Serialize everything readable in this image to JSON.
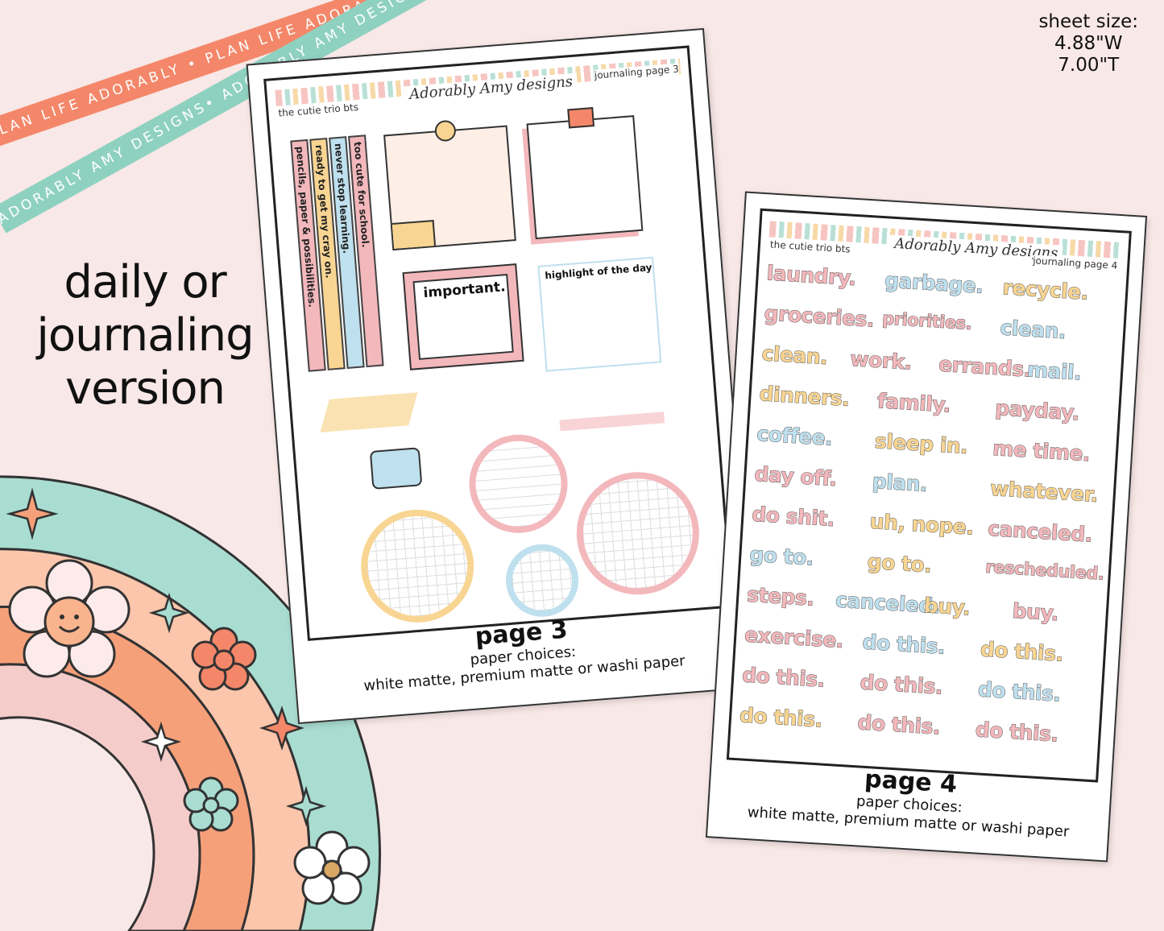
{
  "ribbons": {
    "top": "PLAN LIFE ADORABLY • PLAN LIFE ADORABLY • PLAN LIFE ADORABLY •",
    "bottom": "ADORABLY AMY DESIGNS• ADORABLY AMY DESIGNS• ADORABLY AMY DESIGNS•"
  },
  "sheet_size": {
    "label": "sheet size:",
    "width": "4.88\"W",
    "height": "7.00\"T"
  },
  "headline": [
    "daily or",
    "journaling",
    "version"
  ],
  "page3": {
    "header_left": "the cutie trio bts",
    "logo": "Adorably Amy designs",
    "header_right": "journaling page 3",
    "tabs": [
      "too cute for school.",
      "never stop learning.",
      "ready to get my cray on.",
      "pencils, paper & possibilities."
    ],
    "labels": {
      "important": "important.",
      "highlight": "highlight of the day"
    },
    "caption_title": "page 3",
    "caption_line1": "paper choices:",
    "caption_line2": "white matte, premium matte or washi paper"
  },
  "page4": {
    "header_left": "the cutie trio bts",
    "logo": "Adorably Amy designs",
    "header_right": "journaling page 4",
    "rows": [
      [
        {
          "t": "laundry.",
          "c": "pink"
        },
        {
          "t": "garbage.",
          "c": "blue"
        },
        {
          "t": "recycle.",
          "c": "yellow"
        }
      ],
      [
        {
          "t": "groceries.",
          "c": "pink"
        },
        {
          "t": "priorities.",
          "c": "pink"
        },
        {
          "t": "clean.",
          "c": "blue"
        }
      ],
      [
        {
          "t": "clean.",
          "c": "yellow"
        },
        {
          "t": "work.",
          "c": "pink"
        },
        {
          "t": "errands.",
          "c": "pink"
        },
        {
          "t": "mail.",
          "c": "blue"
        }
      ],
      [
        {
          "t": "dinners.",
          "c": "yellow"
        },
        {
          "t": "family.",
          "c": "pink"
        },
        {
          "t": "payday.",
          "c": "pink"
        }
      ],
      [
        {
          "t": "coffee.",
          "c": "blue"
        },
        {
          "t": "sleep in.",
          "c": "yellow"
        },
        {
          "t": "me time.",
          "c": "pink"
        }
      ],
      [
        {
          "t": "day off.",
          "c": "pink"
        },
        {
          "t": "plan.",
          "c": "blue"
        },
        {
          "t": "whatever.",
          "c": "yellow"
        }
      ],
      [
        {
          "t": "do shit.",
          "c": "pink"
        },
        {
          "t": "uh, nope.",
          "c": "yellow"
        },
        {
          "t": "canceled.",
          "c": "pink"
        }
      ],
      [
        {
          "t": "go to.",
          "c": "blue"
        },
        {
          "t": "go to.",
          "c": "yellow"
        },
        {
          "t": "rescheduled.",
          "c": "pink"
        }
      ],
      [
        {
          "t": "steps.",
          "c": "pink"
        },
        {
          "t": "canceled.",
          "c": "blue"
        },
        {
          "t": "buy.",
          "c": "yellow"
        },
        {
          "t": "buy.",
          "c": "pink"
        }
      ],
      [
        {
          "t": "exercise.",
          "c": "pink"
        },
        {
          "t": "do this.",
          "c": "blue"
        },
        {
          "t": "do this.",
          "c": "yellow"
        }
      ],
      [
        {
          "t": "do this.",
          "c": "pink"
        },
        {
          "t": "do this.",
          "c": "pink"
        },
        {
          "t": "do this.",
          "c": "blue"
        }
      ],
      [
        {
          "t": "do this.",
          "c": "yellow"
        },
        {
          "t": "do this.",
          "c": "pink"
        },
        {
          "t": "do this.",
          "c": "pink"
        }
      ]
    ],
    "caption_title": "page 4",
    "caption_line1": "paper choices:",
    "caption_line2": "white matte, premium matte or washi paper"
  },
  "colors": {
    "pink": "#f3b8bc",
    "blue": "#bfe0ee",
    "yellow": "#f8d592",
    "coral": "#f4876a",
    "mint": "#8fd1c0",
    "background": "#f8e8e7"
  },
  "decorations": {
    "rainbow": "rainbow-flowers-illustration",
    "smiley": "smiley-flower-icon"
  }
}
